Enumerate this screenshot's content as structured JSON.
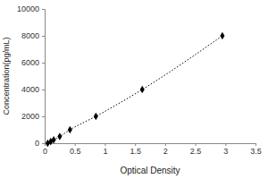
{
  "chart_data": {
    "type": "scatter",
    "xlabel": "Optical Density",
    "ylabel": "Concentration(pg/mL)",
    "x": [
      0.05,
      0.1,
      0.15,
      0.25,
      0.42,
      0.85,
      1.62,
      2.95
    ],
    "values": [
      0,
      125,
      250,
      500,
      1000,
      2000,
      4000,
      8000
    ],
    "xlim": [
      0,
      3.5
    ],
    "xticks": [
      0,
      0.5,
      1,
      1.5,
      2,
      2.5,
      3,
      3.5
    ],
    "ylim": [
      0,
      10000
    ],
    "yticks": [
      0,
      2000,
      4000,
      6000,
      8000,
      10000
    ],
    "color": "#000000",
    "marker": "diamond",
    "line_style": "dotted",
    "grid": false
  }
}
